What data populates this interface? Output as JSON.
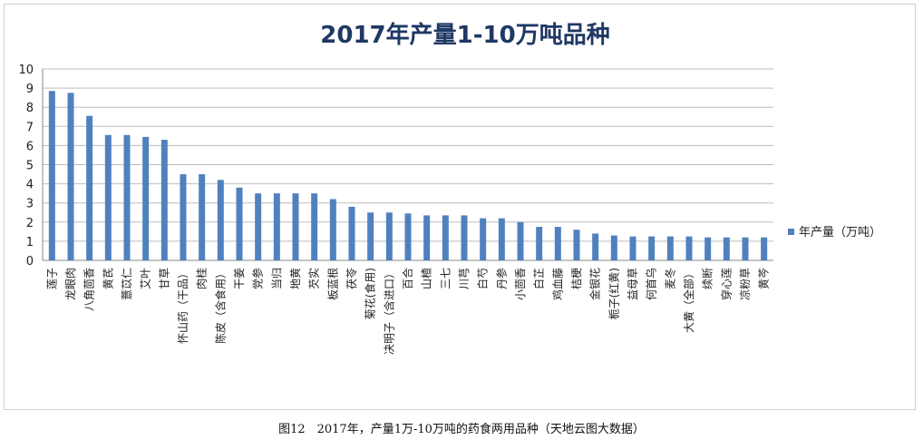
{
  "chart_data": {
    "type": "bar",
    "title": "2017年产量1-10万吨品种",
    "ylim": [
      0,
      10
    ],
    "yticks": [
      0,
      1,
      2,
      3,
      4,
      5,
      6,
      7,
      8,
      9,
      10
    ],
    "grid": true,
    "legend_position": "right",
    "bar_color": "#4f81bd",
    "series": [
      {
        "name": "年产量（万吨）",
        "values": [
          8.85,
          8.75,
          7.55,
          6.55,
          6.55,
          6.45,
          6.3,
          4.5,
          4.5,
          4.2,
          3.8,
          3.5,
          3.5,
          3.5,
          3.5,
          3.2,
          2.8,
          2.5,
          2.5,
          2.45,
          2.35,
          2.35,
          2.35,
          2.2,
          2.2,
          2.0,
          1.75,
          1.75,
          1.6,
          1.4,
          1.3,
          1.25,
          1.25,
          1.25,
          1.25,
          1.2,
          1.2,
          1.2,
          1.2
        ]
      }
    ],
    "categories": [
      "莲子",
      "龙眼肉",
      "八角茴香",
      "黄芪",
      "薏苡仁",
      "艾叶",
      "甘草",
      "怀山药（干品）",
      "肉桂",
      "陈皮（含食用）",
      "干姜",
      "党参",
      "当归",
      "地黄",
      "芡实",
      "板蓝根",
      "茯苓",
      "菊花(食用)",
      "决明子（含进口）",
      "百合",
      "山楂",
      "三七",
      "川芎",
      "白芍",
      "丹参",
      "小茴香",
      "白芷",
      "鸡血藤",
      "桔梗",
      "金银花",
      "栀子(红黄)",
      "益母草",
      "何首乌",
      "麦冬",
      "大黄（全部）",
      "续断",
      "穿心莲",
      "凉粉草",
      "黄芩"
    ]
  },
  "caption": "图12　2017年，产量1万-10万吨的药食两用品种（天地云图大数据）"
}
